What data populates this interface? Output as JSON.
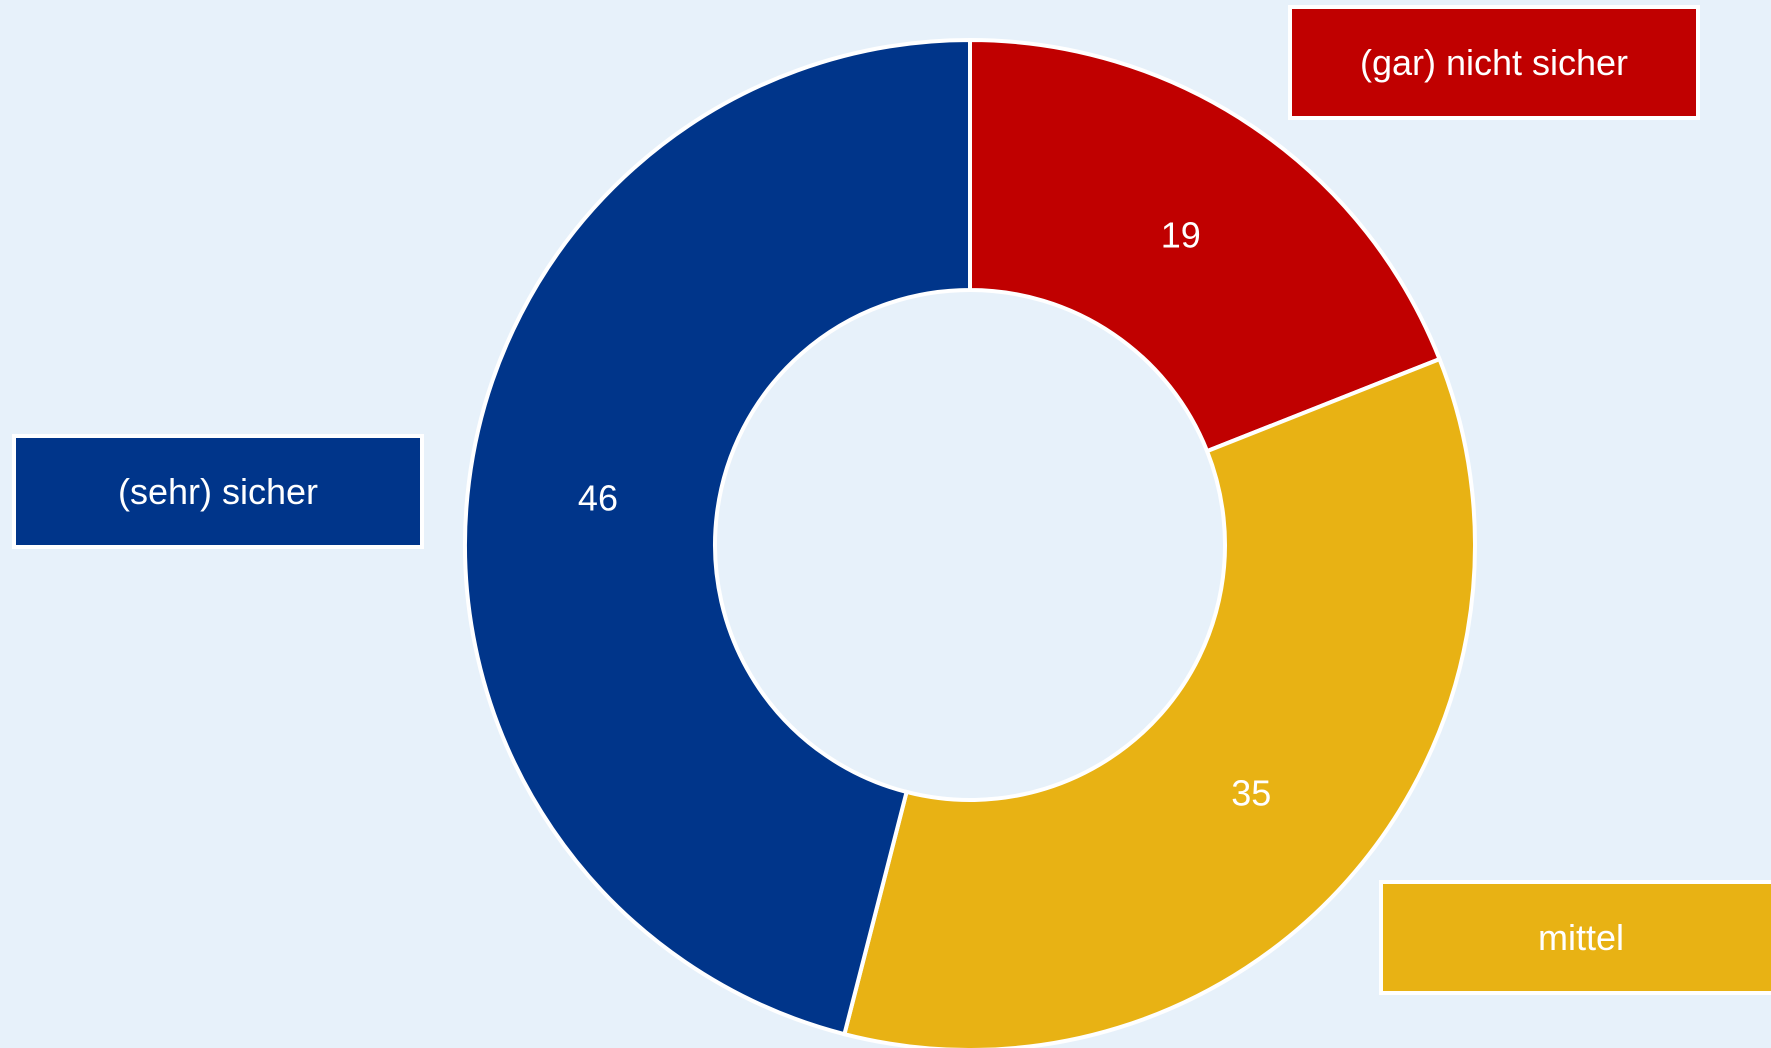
{
  "chart_data": {
    "type": "pie",
    "variant": "donut",
    "slices": [
      {
        "label": "(gar) nicht sicher",
        "value": 19,
        "color": "#c00000"
      },
      {
        "label": "mittel",
        "value": 35,
        "color": "#e8b214"
      },
      {
        "label": "(sehr) sicher",
        "value": 46,
        "color": "#00358a"
      }
    ],
    "background": "#e7f1fa",
    "slice_border_color": "#ffffff"
  }
}
